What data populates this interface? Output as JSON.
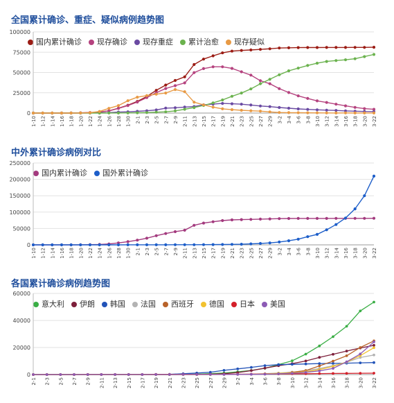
{
  "chart_data": [
    {
      "type": "line",
      "title": "全国累计确诊、重症、疑似病例趋势图",
      "ylim": [
        0,
        100000
      ],
      "yticks": [
        "0",
        "25000",
        "50000",
        "75000",
        "100000"
      ],
      "yticks_values": [
        0,
        25000,
        50000,
        75000,
        100000
      ],
      "x_labels": [
        "1-10",
        "1-12",
        "1-14",
        "1-16",
        "1-18",
        "1-20",
        "1-22",
        "1-24",
        "1-26",
        "1-28",
        "1-30",
        "2-1",
        "2-3",
        "2-5",
        "2-7",
        "2-9",
        "2-11",
        "2-13",
        "2-15",
        "2-17",
        "2-19",
        "2-21",
        "2-23",
        "2-25",
        "2-27",
        "2-29",
        "3-2",
        "3-4",
        "3-6",
        "3-8",
        "3-10",
        "3-12",
        "3-14",
        "3-16",
        "3-18",
        "3-20",
        "3-22"
      ],
      "legend_placement": "top",
      "series": [
        {
          "name": "国内累计确诊",
          "color": "#9b1c14",
          "values": [
            41,
            41,
            41,
            41,
            45,
            291,
            571,
            1287,
            2744,
            5974,
            9692,
            14380,
            20438,
            28018,
            34546,
            40171,
            44653,
            59804,
            66492,
            70548,
            74185,
            76288,
            77150,
            77779,
            78497,
            79251,
            80151,
            80409,
            80652,
            80757,
            80793,
            80824,
            80860,
            80894,
            80928,
            80967,
            81093
          ]
        },
        {
          "name": "现存确诊",
          "color": "#b5437f",
          "values": [
            41,
            40,
            40,
            35,
            35,
            251,
            540,
            1233,
            2646,
            5739,
            9256,
            13630,
            19052,
            25093,
            30256,
            33762,
            37198,
            49824,
            54800,
            57048,
            57023,
            55018,
            50829,
            46764,
            39849,
            36136,
            30060,
            25321,
            21204,
            18047,
            15003,
            13040,
            10940,
            8917,
            7016,
            5479,
            4628
          ]
        },
        {
          "name": "现存重症",
          "color": "#6a4aa2",
          "values": [
            0,
            0,
            0,
            0,
            0,
            0,
            95,
            237,
            461,
            1239,
            1527,
            2110,
            2788,
            3859,
            6101,
            6484,
            7333,
            8030,
            10204,
            11053,
            11864,
            11477,
            10968,
            9915,
            8752,
            7952,
            6806,
            5952,
            5111,
            4492,
            4020,
            3610,
            3226,
            2622,
            2314,
            1963,
            1845
          ]
        },
        {
          "name": "累计治愈",
          "color": "#6bb24e",
          "values": [
            0,
            0,
            0,
            0,
            3,
            25,
            28,
            38,
            51,
            103,
            171,
            328,
            632,
            1153,
            1540,
            2649,
            4740,
            6723,
            9419,
            12552,
            16155,
            20659,
            24734,
            29745,
            36117,
            41625,
            47204,
            52045,
            55404,
            58600,
            61475,
            63616,
            64723,
            65604,
            66926,
            69601,
            72244
          ]
        },
        {
          "name": "现存疑似",
          "color": "#e89a45",
          "values": [
            0,
            0,
            0,
            0,
            0,
            54,
            393,
            1965,
            5794,
            9239,
            15238,
            19544,
            21558,
            23260,
            24702,
            28942,
            26361,
            13435,
            10109,
            7264,
            5248,
            4148,
            3434,
            2824,
            2358,
            1418,
            715,
            520,
            458,
            318,
            285,
            134,
            113,
            134,
            102,
            106,
            113
          ]
        }
      ]
    },
    {
      "type": "line",
      "title": "中外累计确诊病例对比",
      "ylim": [
        0,
        250000
      ],
      "yticks": [
        "0",
        "50000",
        "100000",
        "150000",
        "200000",
        "250000"
      ],
      "yticks_values": [
        0,
        50000,
        100000,
        150000,
        200000,
        250000
      ],
      "x_labels": [
        "1-10",
        "1-12",
        "1-14",
        "1-16",
        "1-18",
        "1-20",
        "1-22",
        "1-24",
        "1-26",
        "1-28",
        "1-30",
        "2-1",
        "2-3",
        "2-5",
        "2-7",
        "2-9",
        "2-11",
        "2-13",
        "2-15",
        "2-17",
        "2-19",
        "2-21",
        "2-23",
        "2-25",
        "2-27",
        "2-29",
        "3-2",
        "3-4",
        "3-6",
        "3-8",
        "3-10",
        "3-12",
        "3-14",
        "3-16",
        "3-18",
        "3-20",
        "3-22"
      ],
      "legend_placement": "top",
      "series": [
        {
          "name": "国内累计确诊",
          "color": "#a33a7e",
          "values": [
            41,
            41,
            41,
            41,
            45,
            291,
            571,
            1287,
            2744,
            5974,
            9692,
            14380,
            20438,
            28018,
            34546,
            40171,
            44653,
            59804,
            66492,
            70548,
            74185,
            76288,
            77150,
            77779,
            78497,
            79251,
            80151,
            80409,
            80652,
            80757,
            80793,
            80824,
            80860,
            80894,
            80928,
            80967,
            81093
          ]
        },
        {
          "name": "国外累计确诊",
          "color": "#1d5ec9",
          "values": [
            0,
            0,
            0,
            0,
            0,
            4,
            9,
            20,
            50,
            80,
            110,
            140,
            170,
            230,
            290,
            320,
            400,
            500,
            600,
            800,
            1100,
            1500,
            2000,
            3000,
            4200,
            6000,
            8700,
            12600,
            17400,
            25000,
            32000,
            46000,
            62000,
            82000,
            110000,
            150000,
            210000
          ]
        }
      ]
    },
    {
      "type": "line",
      "title": "各国累计确诊病例趋势图",
      "ylim": [
        0,
        60000
      ],
      "yticks": [
        "0",
        "20000",
        "40000",
        "60000"
      ],
      "yticks_values": [
        0,
        20000,
        40000,
        60000
      ],
      "x_labels": [
        "2-1",
        "2-3",
        "2-5",
        "2-7",
        "2-9",
        "2-11",
        "2-13",
        "2-15",
        "2-17",
        "2-19",
        "2-21",
        "2-23",
        "2-25",
        "2-27",
        "2-29",
        "3-2",
        "3-4",
        "3-6",
        "3-8",
        "3-10",
        "3-12",
        "3-14",
        "3-16",
        "3-18",
        "3-20",
        "3-22"
      ],
      "legend_placement": "top",
      "series": [
        {
          "name": "意大利",
          "color": "#3aae45",
          "values": [
            2,
            2,
            2,
            3,
            3,
            3,
            3,
            3,
            3,
            3,
            20,
            155,
            322,
            650,
            1128,
            2036,
            3089,
            4636,
            7375,
            10149,
            15113,
            21157,
            27980,
            35713,
            47021,
            53578
          ]
        },
        {
          "name": "伊朗",
          "color": "#7d1f3b",
          "values": [
            0,
            0,
            0,
            0,
            0,
            0,
            0,
            0,
            0,
            5,
            18,
            43,
            95,
            245,
            593,
            1501,
            2922,
            4747,
            6566,
            8042,
            10075,
            12729,
            14991,
            17361,
            19644,
            21638
          ]
        },
        {
          "name": "韩国",
          "color": "#2253b8",
          "values": [
            11,
            15,
            23,
            24,
            27,
            28,
            28,
            29,
            30,
            104,
            204,
            602,
            1146,
            1766,
            3150,
            4212,
            5328,
            6593,
            7313,
            7513,
            7869,
            8086,
            8236,
            8413,
            8652,
            8897
          ]
        },
        {
          "name": "法国",
          "color": "#b3b3b3",
          "values": [
            6,
            6,
            6,
            6,
            11,
            11,
            11,
            12,
            12,
            12,
            12,
            12,
            14,
            38,
            100,
            191,
            285,
            653,
            1126,
            1784,
            2876,
            4469,
            6633,
            9134,
            12612,
            14459
          ]
        },
        {
          "name": "西班牙",
          "color": "#b8632a",
          "values": [
            1,
            1,
            1,
            1,
            2,
            2,
            2,
            2,
            2,
            2,
            2,
            2,
            8,
            15,
            45,
            120,
            222,
            400,
            589,
            1639,
            2950,
            6391,
            9942,
            13910,
            19980,
            24926
          ]
        },
        {
          "name": "德国",
          "color": "#f2c230",
          "values": [
            8,
            12,
            13,
            13,
            14,
            16,
            16,
            16,
            16,
            16,
            16,
            16,
            18,
            46,
            79,
            150,
            262,
            534,
            902,
            1296,
            2078,
            3675,
            6012,
            9257,
            13979,
            19848
          ]
        },
        {
          "name": "日本",
          "color": "#d4202a",
          "values": [
            20,
            20,
            25,
            25,
            26,
            28,
            28,
            53,
            66,
            84,
            105,
            144,
            164,
            186,
            230,
            256,
            293,
            360,
            461,
            581,
            620,
            734,
            814,
            889,
            950,
            1007
          ]
        },
        {
          "name": "美国",
          "color": "#8c5bb5",
          "values": [
            8,
            11,
            12,
            12,
            12,
            13,
            14,
            15,
            15,
            15,
            15,
            35,
            53,
            60,
            68,
            100,
            158,
            233,
            541,
            994,
            1663,
            2726,
            4584,
            9415,
            15219,
            24148
          ]
        }
      ]
    }
  ]
}
